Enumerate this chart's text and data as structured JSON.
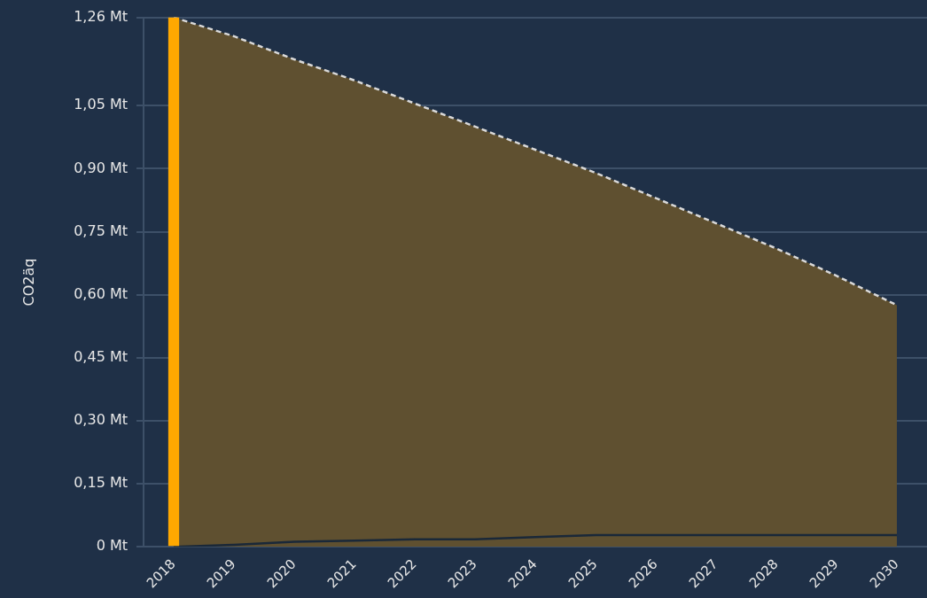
{
  "chart_data": {
    "type": "area",
    "ylabel": "CO2äq",
    "categories": [
      "2018",
      "2019",
      "2020",
      "2021",
      "2022",
      "2023",
      "2024",
      "2025",
      "2026",
      "2027",
      "2028",
      "2029",
      "2030"
    ],
    "series": [
      {
        "color": "#5f5030",
        "line_style": "dashed",
        "values": [
          1.26,
          1.215,
          1.16,
          1.11,
          1.055,
          1.0,
          0.945,
          0.89,
          0.83,
          0.77,
          0.71,
          0.645,
          0.575
        ]
      },
      {
        "type": "line",
        "color": "#1a2838",
        "line_style": "solid",
        "values": [
          0,
          0.005,
          0.012,
          0.015,
          0.018,
          0.018,
          0.023,
          0.028,
          0.028,
          0.028,
          0.028,
          0.028,
          0.028
        ]
      },
      {
        "type": "bar",
        "color": "#ffa800",
        "values": [
          1.26,
          null,
          null,
          null,
          null,
          null,
          null,
          null,
          null,
          null,
          null,
          null,
          null
        ]
      }
    ],
    "ylim": [
      0,
      1.26
    ],
    "yticks": [
      {
        "value": 0,
        "label": "0 Mt"
      },
      {
        "value": 0.15,
        "label": "0,15 Mt"
      },
      {
        "value": 0.3,
        "label": "0,30 Mt"
      },
      {
        "value": 0.45,
        "label": "0,45 Mt"
      },
      {
        "value": 0.6,
        "label": "0,60 Mt"
      },
      {
        "value": 0.75,
        "label": "0,75 Mt"
      },
      {
        "value": 0.9,
        "label": "0,90 Mt"
      },
      {
        "value": 1.05,
        "label": "1,05 Mt"
      },
      {
        "value": 1.26,
        "label": "1,26 Mt"
      }
    ],
    "grid": "y",
    "marker": "none"
  }
}
